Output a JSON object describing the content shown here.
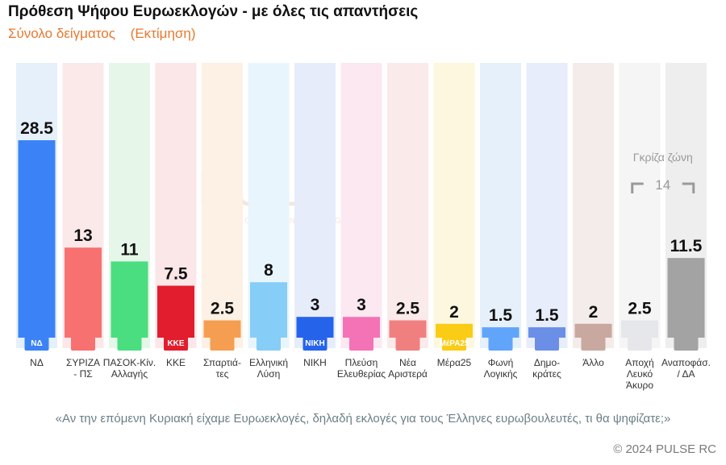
{
  "header": {
    "title": "Πρόθεση Ψήφου Ευρωεκλογών - με όλες τις απαντήσεις",
    "subtitle_left": "Σύνολο δείγματος",
    "subtitle_right": "(Εκτίμηση)"
  },
  "watermark": {
    "brand": "PULSE",
    "tagline": "RESEARCH & CONSULTING"
  },
  "grey_zone": {
    "label": "Γκρίζα ζώνη",
    "value": "14"
  },
  "question": "«Αν την επόμενη Κυριακή είχαμε Ευρωεκλογές, δηλαδή εκλογές για τους Έλληνες ευρωβουλευτές, τι θα ψηφίζατε;»",
  "copyright": "© 2024 PULSE RC",
  "chart_data": {
    "type": "bar",
    "categories": [
      "ΝΔ",
      "ΣΥΡΙΖΑ - ΠΣ",
      "ΠΑΣΟΚ-Κίν. Αλλαγής",
      "ΚΚΕ",
      "Σπαρτιά-τες",
      "Ελληνική Λύση",
      "ΝΙΚΗ",
      "Πλεύση Ελευθερίας",
      "Νέα Αριστερά",
      "Μέρα25",
      "Φωνή Λογικής",
      "Δημο-κράτες",
      "Άλλο",
      "Αποχή Λευκό Άκυρο",
      "Αναποφάσ. / ΔΑ"
    ],
    "category_lines": [
      [
        "ΝΔ"
      ],
      [
        "ΣΥΡΙΖΑ",
        "- ΠΣ"
      ],
      [
        "ΠΑΣΟΚ-Κίν.",
        "Αλλαγής"
      ],
      [
        "ΚΚΕ"
      ],
      [
        "Σπαρτιά-",
        "τες"
      ],
      [
        "Ελληνική",
        "Λύση"
      ],
      [
        "ΝΙΚΗ"
      ],
      [
        "Πλεύση",
        "Ελευθερίας"
      ],
      [
        "Νέα",
        "Αριστερά"
      ],
      [
        "Μέρα25"
      ],
      [
        "Φωνή",
        "Λογικής"
      ],
      [
        "Δημο-",
        "κράτες"
      ],
      [
        "Άλλο"
      ],
      [
        "Αποχή",
        "Λευκό",
        "Άκυρο"
      ],
      [
        "Αναποφάσ.",
        "/ ΔΑ"
      ]
    ],
    "values": [
      28.5,
      13,
      11,
      7.5,
      2.5,
      8,
      3,
      3,
      2.5,
      2,
      1.5,
      1.5,
      2,
      2.5,
      11.5
    ],
    "value_labels": [
      "28.5",
      "13",
      "11",
      "7.5",
      "2.5",
      "8",
      "3",
      "3",
      "2.5",
      "2",
      "1.5",
      "1.5",
      "2",
      "2.5",
      "11.5"
    ],
    "logo_texts": [
      "ΝΔ",
      "",
      "",
      "ΚΚΕ",
      "",
      "",
      "ΝΙΚΗ",
      "",
      "",
      "ΜέΡΑ25",
      "",
      "",
      "",
      "",
      ""
    ],
    "colors": [
      "#3b82f6",
      "#f87171",
      "#4ade80",
      "#e11d2e",
      "#f59e52",
      "#86cdf7",
      "#2563eb",
      "#f472b6",
      "#f08080",
      "#facc15",
      "#60a5fa",
      "#6b8fe6",
      "#c9a8a0",
      "#e5e7eb",
      "#a3a3a3"
    ],
    "bg_colors": [
      "#e6f0fb",
      "#fbe9e9",
      "#e6f7ea",
      "#fbe6e8",
      "#fdf0e4",
      "#e8f5fc",
      "#e6ecfa",
      "#fbe8f1",
      "#fbeaea",
      "#fdf7df",
      "#e6f0fb",
      "#e8edfb",
      "#f3ecea",
      "#f5f5f5",
      "#eeeeee"
    ],
    "ylim": [
      0,
      30
    ]
  }
}
